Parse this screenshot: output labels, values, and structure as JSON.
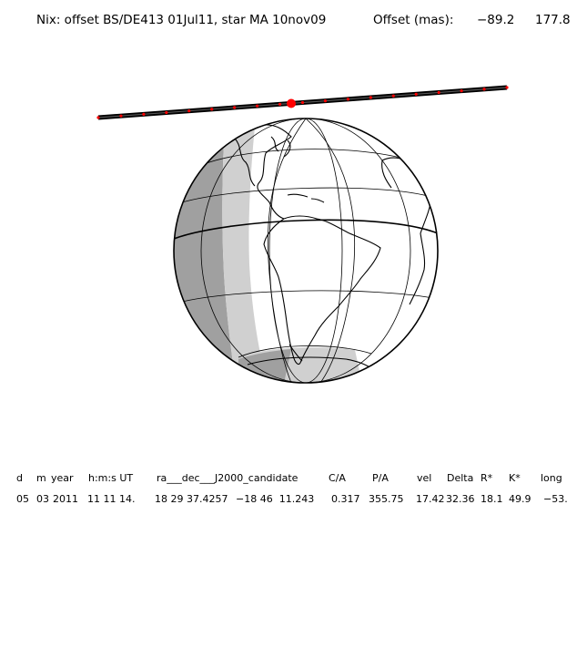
{
  "header": {
    "title": "Nix: offset BS/DE413 01Jul11, star MA 10nov09",
    "offset_label": "Offset (mas):",
    "offset_x": "−89.2",
    "offset_y": "177.8"
  },
  "map": {
    "globe_center": "South America",
    "track_color": "#000000",
    "track_marker_color": "#ff0000",
    "night_shade_color": "#a0a0a0",
    "twilight_shade_color": "#d0d0d0",
    "day_color": "#ffffff"
  },
  "table": {
    "headers": [
      "d",
      "m",
      "year",
      "h:m:s UT",
      "ra___dec___J2000_candidate",
      "C/A",
      "P/A",
      "vel",
      "Delta",
      "R*",
      "K*",
      "long"
    ],
    "values": [
      "05",
      "03",
      "2011",
      "11 11 14.",
      "18 29 37.4257",
      "−18 46  11.243",
      "0.317",
      "355.75",
      "17.42",
      "32.36",
      "18.1",
      "49.9",
      "−53."
    ]
  }
}
